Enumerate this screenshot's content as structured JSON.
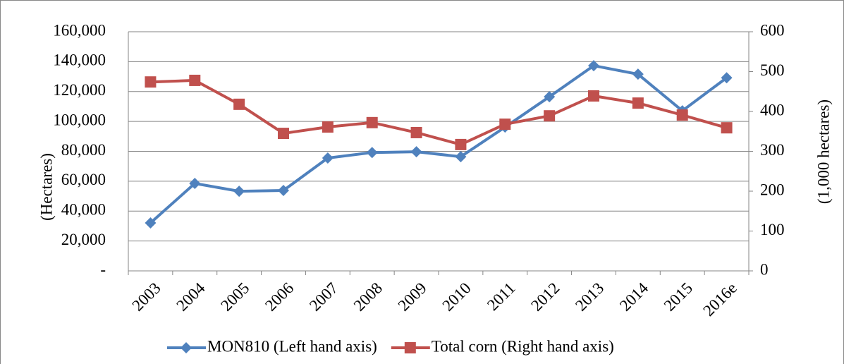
{
  "chart_data": {
    "type": "line",
    "categories": [
      "2003",
      "2004",
      "2005",
      "2006",
      "2007",
      "2008",
      "2009",
      "2010",
      "2011",
      "2012",
      "2013",
      "2014",
      "2015",
      "2016e"
    ],
    "series": [
      {
        "name": "MON810 (Left hand axis)",
        "color": "#4f81bd",
        "marker": "diamond",
        "values": [
          32100,
          58500,
          53300,
          53800,
          75500,
          79200,
          79700,
          76400,
          96200,
          116500,
          137300,
          131600,
          107100,
          129200
        ]
      },
      {
        "name": "Total corn (Right hand axis)",
        "color": "#c0504d",
        "marker": "square",
        "axis": "y2",
        "values": [
          474,
          478,
          418,
          345,
          361,
          372,
          347,
          317,
          368,
          389,
          439,
          421,
          391,
          359
        ]
      }
    ],
    "ylabel": "(Hectares)",
    "y2label": "(1,000 hectares)",
    "ylim": [
      0,
      160000
    ],
    "yticks": [
      {
        "value": 0,
        "label": "-"
      },
      {
        "value": 20000,
        "label": "20,000"
      },
      {
        "value": 40000,
        "label": "40,000"
      },
      {
        "value": 60000,
        "label": "60,000"
      },
      {
        "value": 80000,
        "label": "80,000"
      },
      {
        "value": 100000,
        "label": "100,000"
      },
      {
        "value": 120000,
        "label": "120,000"
      },
      {
        "value": 140000,
        "label": "140,000"
      },
      {
        "value": 160000,
        "label": "160,000"
      }
    ],
    "y2lim": [
      0,
      600
    ],
    "y2ticks": [
      0,
      100,
      200,
      300,
      400,
      500,
      600
    ],
    "grid": true,
    "legend": "bottom"
  }
}
